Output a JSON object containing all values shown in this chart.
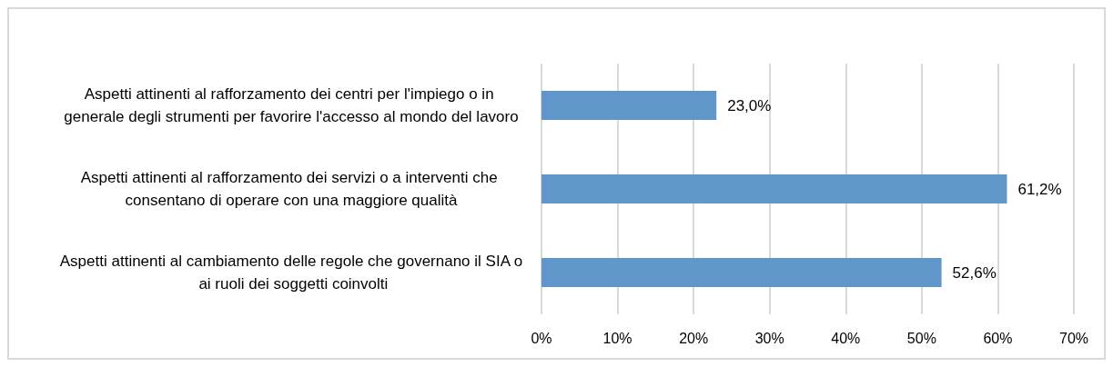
{
  "chart_data": {
    "type": "bar",
    "orientation": "horizontal",
    "categories": [
      "Aspetti attinenti al rafforzamento dei centri per l'impiego o in generale degli strumenti per favorire l'accesso al mondo del lavoro",
      "Aspetti attinenti al rafforzamento dei servizi o a interventi che consentano di operare con una maggiore qualità",
      "Aspetti attinenti al cambiamento delle regole che governano il SIA o ai ruoli dei soggetti coinvolti"
    ],
    "values": [
      23.0,
      61.2,
      52.6
    ],
    "value_labels": [
      "23,0%",
      "61,2%",
      "52,6%"
    ],
    "color": "#6096c9",
    "xlim": [
      0,
      70
    ],
    "xticks": [
      {
        "value": 0,
        "label": "0%"
      },
      {
        "value": 10,
        "label": "10%"
      },
      {
        "value": 20,
        "label": "20%"
      },
      {
        "value": 30,
        "label": "30%"
      },
      {
        "value": 40,
        "label": "40%"
      },
      {
        "value": 50,
        "label": "50%"
      },
      {
        "value": 60,
        "label": "60%"
      },
      {
        "value": 70,
        "label": "70%"
      }
    ],
    "grid": "x"
  }
}
